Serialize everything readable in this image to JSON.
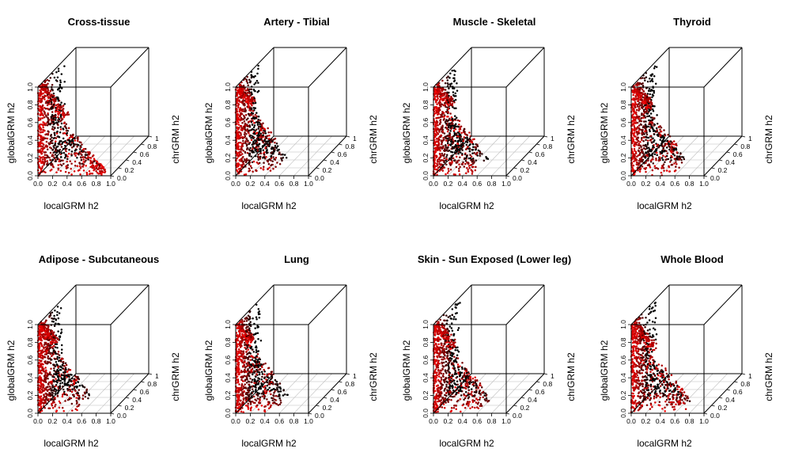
{
  "figure": {
    "panels": [
      {
        "title": "Cross-tissue",
        "spread": 1.0,
        "seed": 11
      },
      {
        "title": "Artery - Tibial",
        "spread": 0.55,
        "seed": 23
      },
      {
        "title": "Muscle - Skeletal",
        "spread": 0.6,
        "seed": 37
      },
      {
        "title": "Thyroid",
        "spread": 0.65,
        "seed": 41
      },
      {
        "title": "Adipose - Subcutaneous",
        "spread": 0.6,
        "seed": 53
      },
      {
        "title": "Lung",
        "spread": 0.55,
        "seed": 67
      },
      {
        "title": "Skin - Sun Exposed (Lower leg)",
        "spread": 0.7,
        "seed": 71
      },
      {
        "title": "Whole Blood",
        "spread": 0.8,
        "seed": 83
      }
    ],
    "axes": {
      "xlabel": "localGRM h2",
      "ylabel": "globalGRM h2",
      "zlabel": "chrGRM h2",
      "x_ticks": [
        "0.0",
        "0.2",
        "0.4",
        "0.6",
        "0.8",
        "1.0"
      ],
      "y_ticks": [
        "0.0",
        "0.2",
        "0.4",
        "0.6",
        "0.8",
        "1.0"
      ],
      "z_ticks": [
        "0.0",
        "0.2",
        "0.4",
        "0.6",
        "0.8",
        "1"
      ],
      "xlim": [
        0,
        1
      ],
      "ylim": [
        0,
        1
      ],
      "zlim": [
        0,
        1
      ]
    },
    "colors": {
      "box": "#000000",
      "grid": "#bebebe",
      "low_z": "#ff0000",
      "high_z": "#000000"
    }
  },
  "chart_data": {
    "type": "scatter",
    "grid": true,
    "xlim": [
      0,
      1
    ],
    "ylim": [
      0,
      1
    ],
    "zlim": [
      0,
      1
    ]
  }
}
